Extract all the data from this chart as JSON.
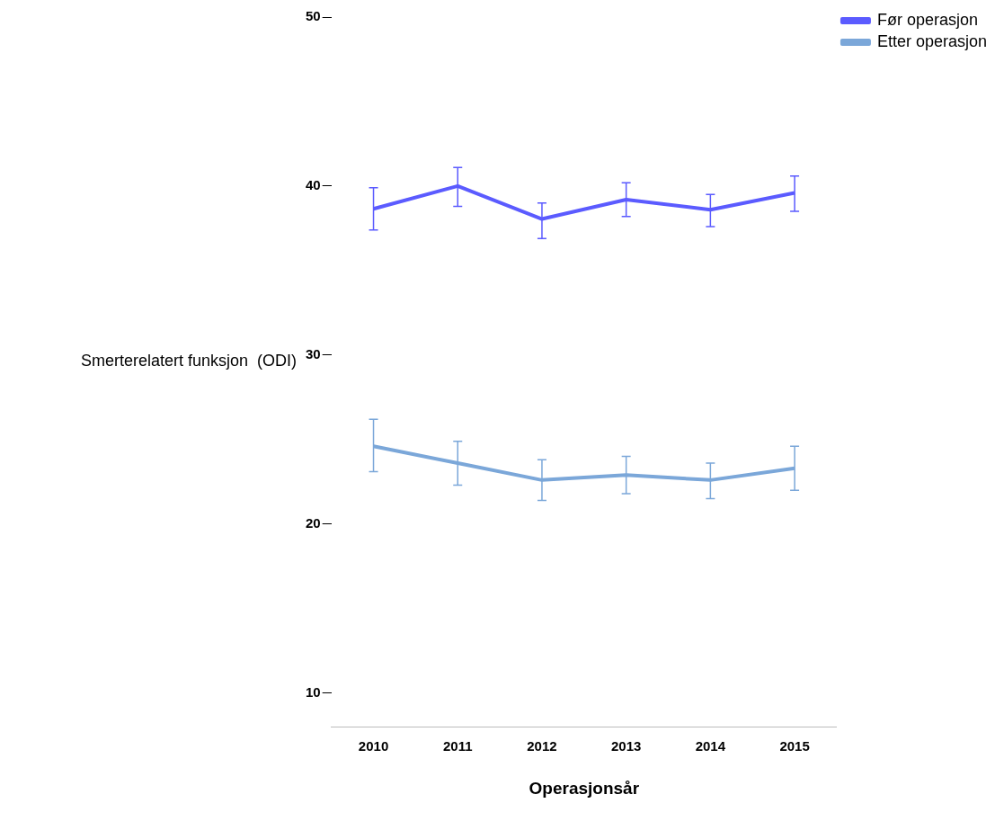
{
  "chart_data": {
    "type": "line",
    "xlabel": "Operasjonsår",
    "ylabel": "Smerterelatert funksjon  (ODI)",
    "categories": [
      "2010",
      "2011",
      "2012",
      "2013",
      "2014",
      "2015"
    ],
    "series": [
      {
        "name": "Før operasjon",
        "color": "#5b5bff",
        "values": [
          38.65,
          40.0,
          38.05,
          39.2,
          38.6,
          39.6
        ],
        "errors": [
          [
            37.4,
            39.9
          ],
          [
            38.8,
            41.1
          ],
          [
            36.9,
            39.0
          ],
          [
            38.2,
            40.2
          ],
          [
            37.6,
            39.5
          ],
          [
            38.5,
            40.6
          ]
        ]
      },
      {
        "name": "Etter operasjon",
        "color": "#7ba7d9",
        "values": [
          24.6,
          23.6,
          22.6,
          22.9,
          22.6,
          23.3
        ],
        "errors": [
          [
            23.1,
            26.2
          ],
          [
            22.3,
            24.9
          ],
          [
            21.4,
            23.8
          ],
          [
            21.8,
            24.0
          ],
          [
            21.5,
            23.6
          ],
          [
            22.0,
            24.6
          ]
        ]
      }
    ],
    "ylim": [
      8,
      50
    ],
    "yticks": [
      10,
      20,
      30,
      40,
      50
    ],
    "grid": false,
    "legend": "top right",
    "marker": "none",
    "line_style": "solid"
  }
}
